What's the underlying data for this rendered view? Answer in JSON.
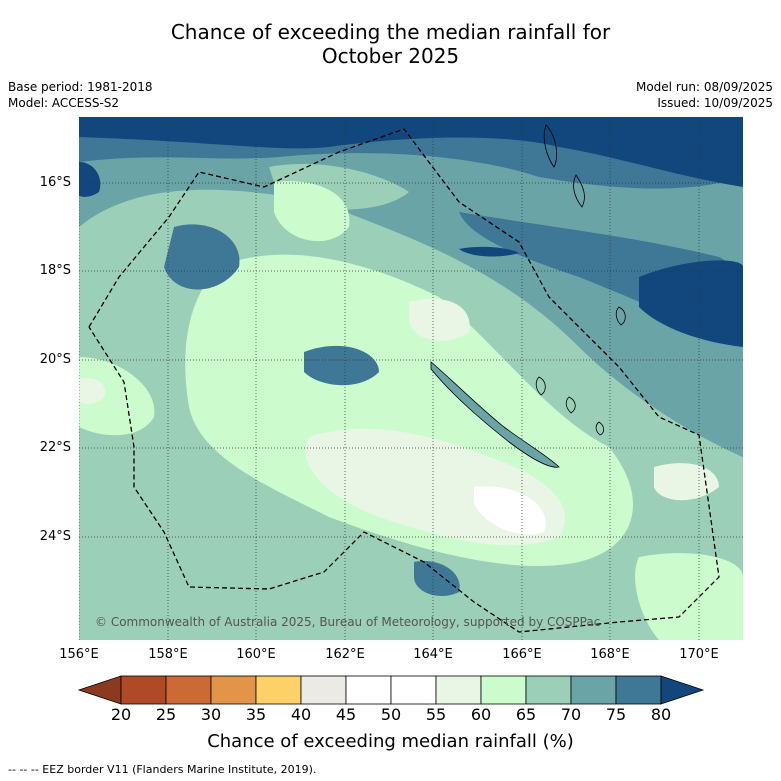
{
  "title": {
    "line1": "Chance of exceeding the median rainfall for",
    "line2": "October 2025"
  },
  "meta": {
    "base_period": "Base period: 1981-2018",
    "model": "Model: ACCESS-S2",
    "model_run": "Model run: 08/09/2025",
    "issued": "Issued: 10/09/2025"
  },
  "map": {
    "lat_labels": [
      "16°S",
      "18°S",
      "20°S",
      "22°S",
      "24°S"
    ],
    "lon_labels": [
      "156°E",
      "158°E",
      "160°E",
      "162°E",
      "164°E",
      "166°E",
      "168°E",
      "170°E"
    ],
    "copyright": "© Commonwealth of Australia 2025, Bureau of Meteorology, supported by COSPPac"
  },
  "colorbar": {
    "ticks": [
      "20",
      "25",
      "30",
      "35",
      "40",
      "45",
      "50",
      "55",
      "60",
      "65",
      "70",
      "75",
      "80"
    ],
    "colors": [
      "#8b3a1f",
      "#b04a26",
      "#cc6a35",
      "#e29548",
      "#fdd068",
      "#ebeae5",
      "#ffffff",
      "#ffffff",
      "#e9f6e5",
      "#ccfccd",
      "#9bcfb8",
      "#6ba4a7",
      "#3e7896",
      "#12477d"
    ],
    "label": "Chance of exceeding median rainfall (%)"
  },
  "footer": "--  --  -- EEZ border V11 (Flanders Marine Institute, 2019)."
}
